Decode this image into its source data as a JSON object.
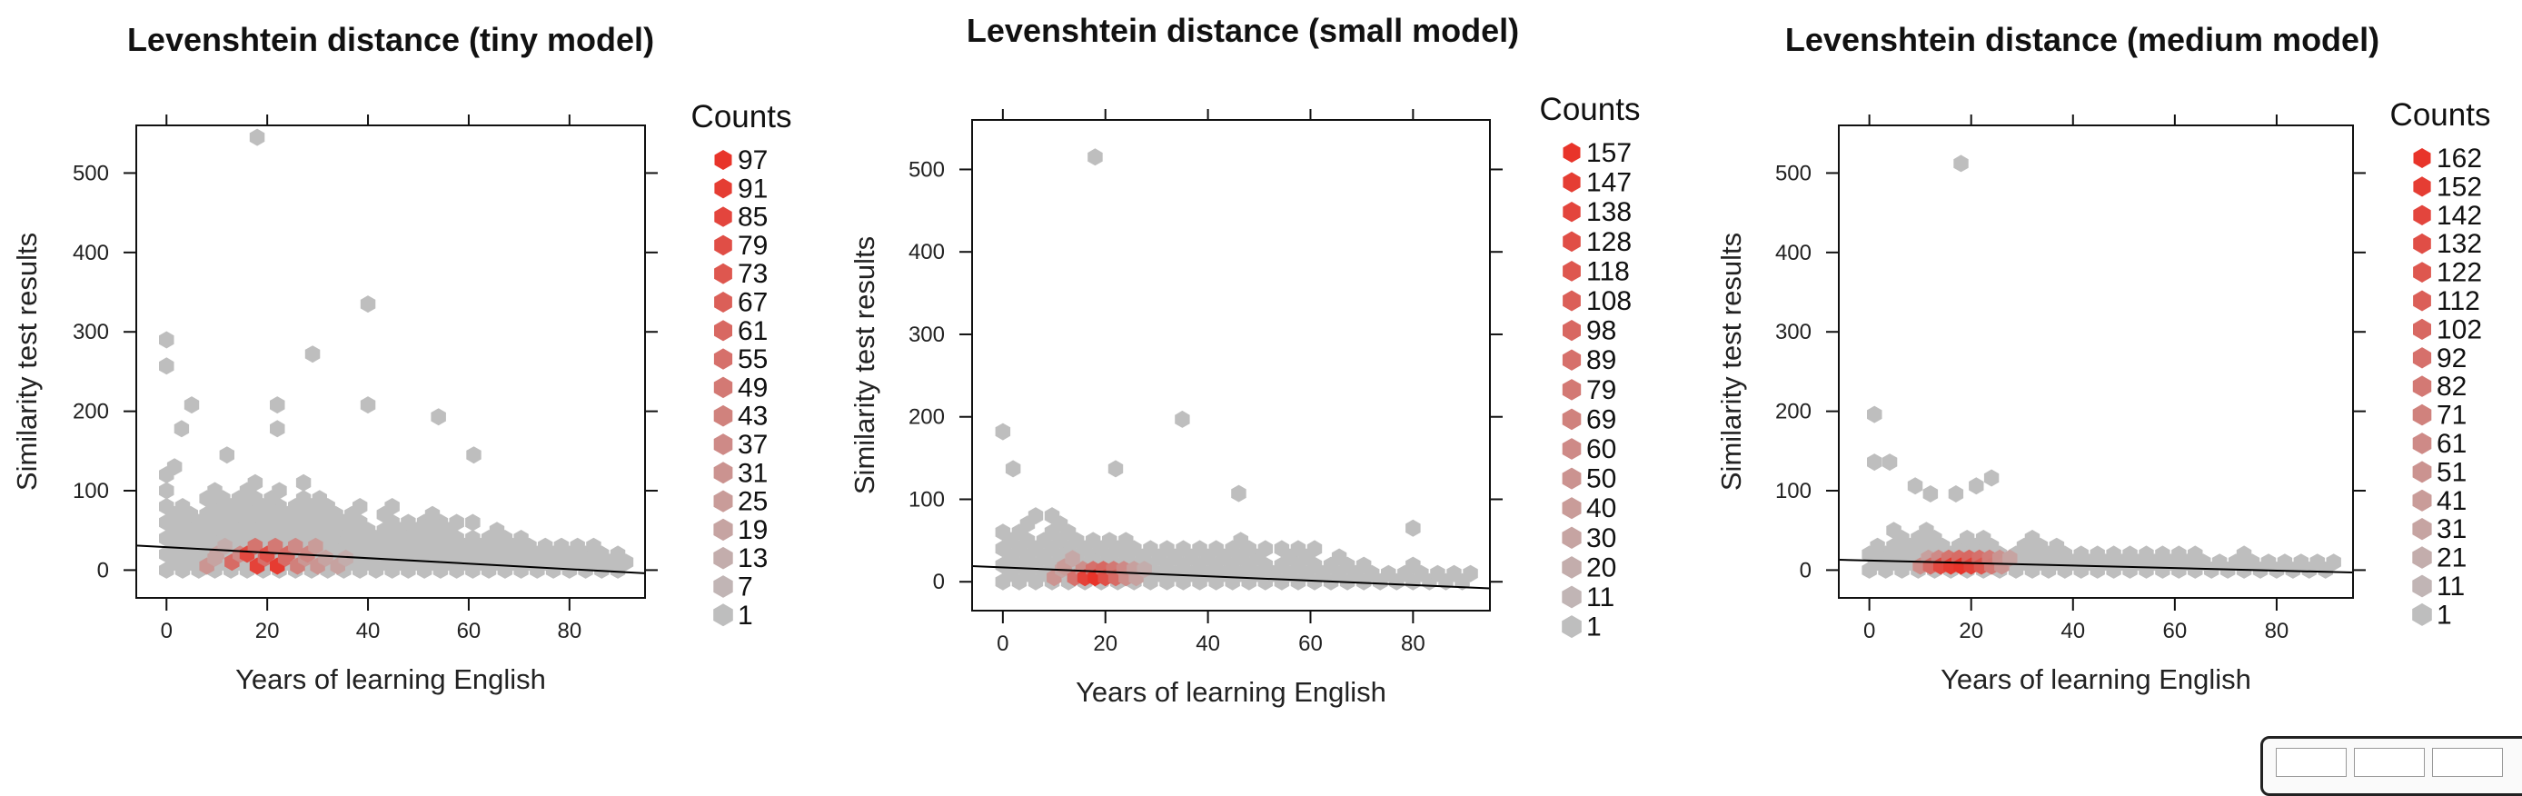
{
  "colors": {
    "low": "#bebebe",
    "high": "#e8342a",
    "axis": "#111111",
    "fit_line": "#000000"
  },
  "chart_data": [
    {
      "type": "heatmap",
      "title": "Levenshtein distance (tiny model)",
      "xlabel": "Years of learning English",
      "ylabel": "Similarity test results",
      "xlim": [
        -6,
        95
      ],
      "ylim": [
        -35,
        560
      ],
      "xticks": [
        0,
        20,
        40,
        60,
        80
      ],
      "yticks": [
        0,
        100,
        200,
        300,
        400,
        500
      ],
      "legend_title": "Counts",
      "legend_labels": [
        "97",
        "91",
        "85",
        "79",
        "73",
        "67",
        "61",
        "55",
        "49",
        "43",
        "37",
        "31",
        "25",
        "19",
        "13",
        "7",
        "1"
      ],
      "regression_line": {
        "x": [
          -6,
          95
        ],
        "y": [
          31,
          -4
        ]
      },
      "outliers": [
        [
          18,
          545
        ],
        [
          0,
          290
        ],
        [
          0,
          257
        ],
        [
          3,
          178
        ],
        [
          5,
          208
        ],
        [
          22,
          208
        ],
        [
          22,
          178
        ],
        [
          29,
          272
        ],
        [
          40,
          335
        ],
        [
          40,
          208
        ],
        [
          54,
          193
        ],
        [
          61,
          145
        ],
        [
          12,
          145
        ]
      ],
      "dense_cells": [
        [
          10,
          20,
          20
        ],
        [
          13,
          10,
          60
        ],
        [
          16,
          20,
          85
        ],
        [
          18,
          5,
          90
        ],
        [
          20,
          20,
          80
        ],
        [
          22,
          5,
          95
        ],
        [
          24,
          20,
          60
        ],
        [
          26,
          5,
          45
        ],
        [
          28,
          20,
          40
        ],
        [
          8,
          5,
          30
        ],
        [
          30,
          5,
          30
        ],
        [
          34,
          5,
          20
        ]
      ]
    },
    {
      "type": "heatmap",
      "title": "Levenshtein distance (small model)",
      "xlabel": "Years of learning English",
      "ylabel": "Similarity test results",
      "xlim": [
        -6,
        95
      ],
      "ylim": [
        -35,
        560
      ],
      "xticks": [
        0,
        20,
        40,
        60,
        80
      ],
      "yticks": [
        0,
        100,
        200,
        300,
        400,
        500
      ],
      "legend_title": "Counts",
      "legend_labels": [
        "157",
        "147",
        "138",
        "128",
        "118",
        "108",
        "98",
        "89",
        "79",
        "69",
        "60",
        "50",
        "40",
        "30",
        "20",
        "11",
        "1"
      ],
      "regression_line": {
        "x": [
          -6,
          95
        ],
        "y": [
          19,
          -8
        ]
      },
      "outliers": [
        [
          18,
          515
        ],
        [
          0,
          182
        ],
        [
          35,
          197
        ],
        [
          22,
          137
        ],
        [
          2,
          137
        ],
        [
          46,
          107
        ],
        [
          80,
          65
        ]
      ],
      "dense_cells": [
        [
          10,
          5,
          30
        ],
        [
          14,
          5,
          55
        ],
        [
          16,
          5,
          90
        ],
        [
          18,
          5,
          100
        ],
        [
          20,
          5,
          80
        ],
        [
          22,
          5,
          60
        ],
        [
          24,
          5,
          35
        ],
        [
          12,
          18,
          25
        ],
        [
          26,
          5,
          20
        ]
      ]
    },
    {
      "type": "heatmap",
      "title": "Levenshtein distance (medium model)",
      "xlabel": "Years of learning English",
      "ylabel": "Similarity test results",
      "xlim": [
        -6,
        95
      ],
      "ylim": [
        -35,
        560
      ],
      "xticks": [
        0,
        20,
        40,
        60,
        80
      ],
      "yticks": [
        0,
        100,
        200,
        300,
        400,
        500
      ],
      "legend_title": "Counts",
      "legend_labels": [
        "162",
        "152",
        "142",
        "132",
        "122",
        "112",
        "102",
        "92",
        "82",
        "71",
        "61",
        "51",
        "41",
        "31",
        "21",
        "11",
        "1"
      ],
      "regression_line": {
        "x": [
          -6,
          95
        ],
        "y": [
          13,
          -3
        ]
      },
      "outliers": [
        [
          18,
          512
        ],
        [
          1,
          196
        ],
        [
          1,
          136
        ],
        [
          4,
          136
        ],
        [
          12,
          96
        ],
        [
          17,
          96
        ],
        [
          21,
          106
        ],
        [
          24,
          116
        ],
        [
          9,
          106
        ]
      ],
      "dense_cells": [
        [
          10,
          5,
          35
        ],
        [
          12,
          5,
          60
        ],
        [
          14,
          5,
          85
        ],
        [
          16,
          5,
          95
        ],
        [
          18,
          5,
          100
        ],
        [
          20,
          5,
          90
        ],
        [
          22,
          5,
          75
        ],
        [
          24,
          5,
          50
        ],
        [
          26,
          5,
          30
        ]
      ]
    }
  ]
}
